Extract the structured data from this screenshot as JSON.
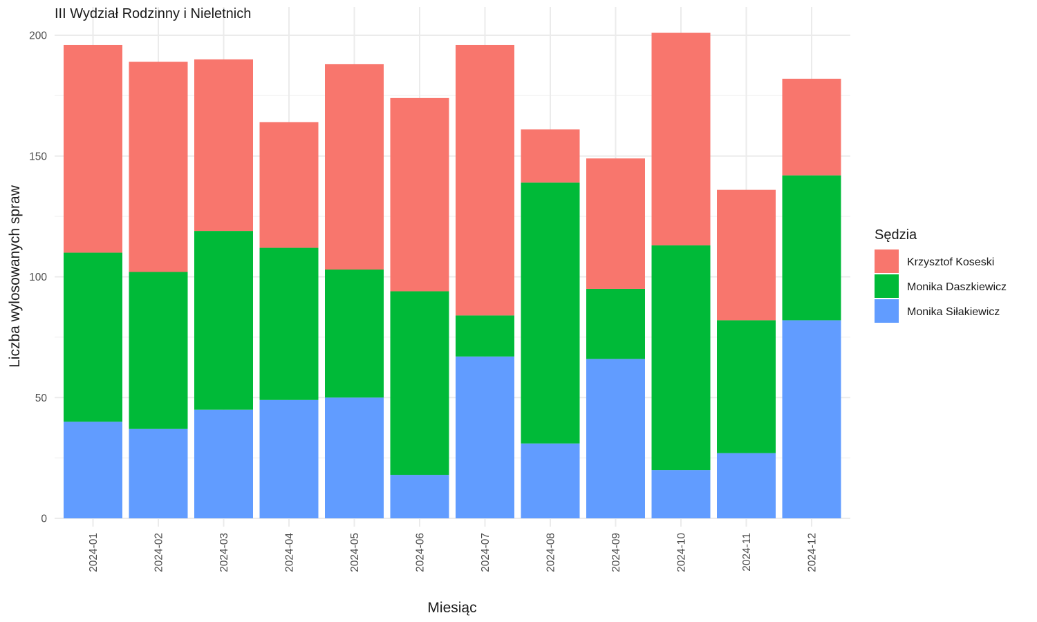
{
  "chart_data": {
    "type": "bar",
    "stacked": true,
    "title": "III Wydział Rodzinny i Nieletnich",
    "xlabel": "Miesiąc",
    "ylabel": "Liczba wylosowanych spraw",
    "ylim": [
      0,
      200
    ],
    "yticks": [
      "0",
      "50",
      "100",
      "150",
      "200"
    ],
    "grid": true,
    "legend": {
      "title": "Sędzia",
      "placement": "right"
    },
    "categories": [
      "2024-01",
      "2024-02",
      "2024-03",
      "2024-04",
      "2024-05",
      "2024-06",
      "2024-07",
      "2024-08",
      "2024-09",
      "2024-10",
      "2024-11",
      "2024-12"
    ],
    "series": [
      {
        "name": "Monika Siłakiewicz",
        "color": "#619CFF",
        "values": [
          40,
          37,
          45,
          49,
          50,
          18,
          67,
          31,
          66,
          20,
          27,
          82
        ]
      },
      {
        "name": "Monika Daszkiewicz",
        "color": "#00BA38",
        "values": [
          70,
          65,
          74,
          63,
          53,
          76,
          17,
          108,
          29,
          93,
          55,
          60
        ]
      },
      {
        "name": "Krzysztof Koseski",
        "color": "#F8766D",
        "values": [
          86,
          87,
          71,
          52,
          85,
          80,
          112,
          22,
          54,
          88,
          54,
          40
        ]
      }
    ],
    "legend_order": [
      "Krzysztof Koseski",
      "Monika Daszkiewicz",
      "Monika Siłakiewicz"
    ]
  }
}
